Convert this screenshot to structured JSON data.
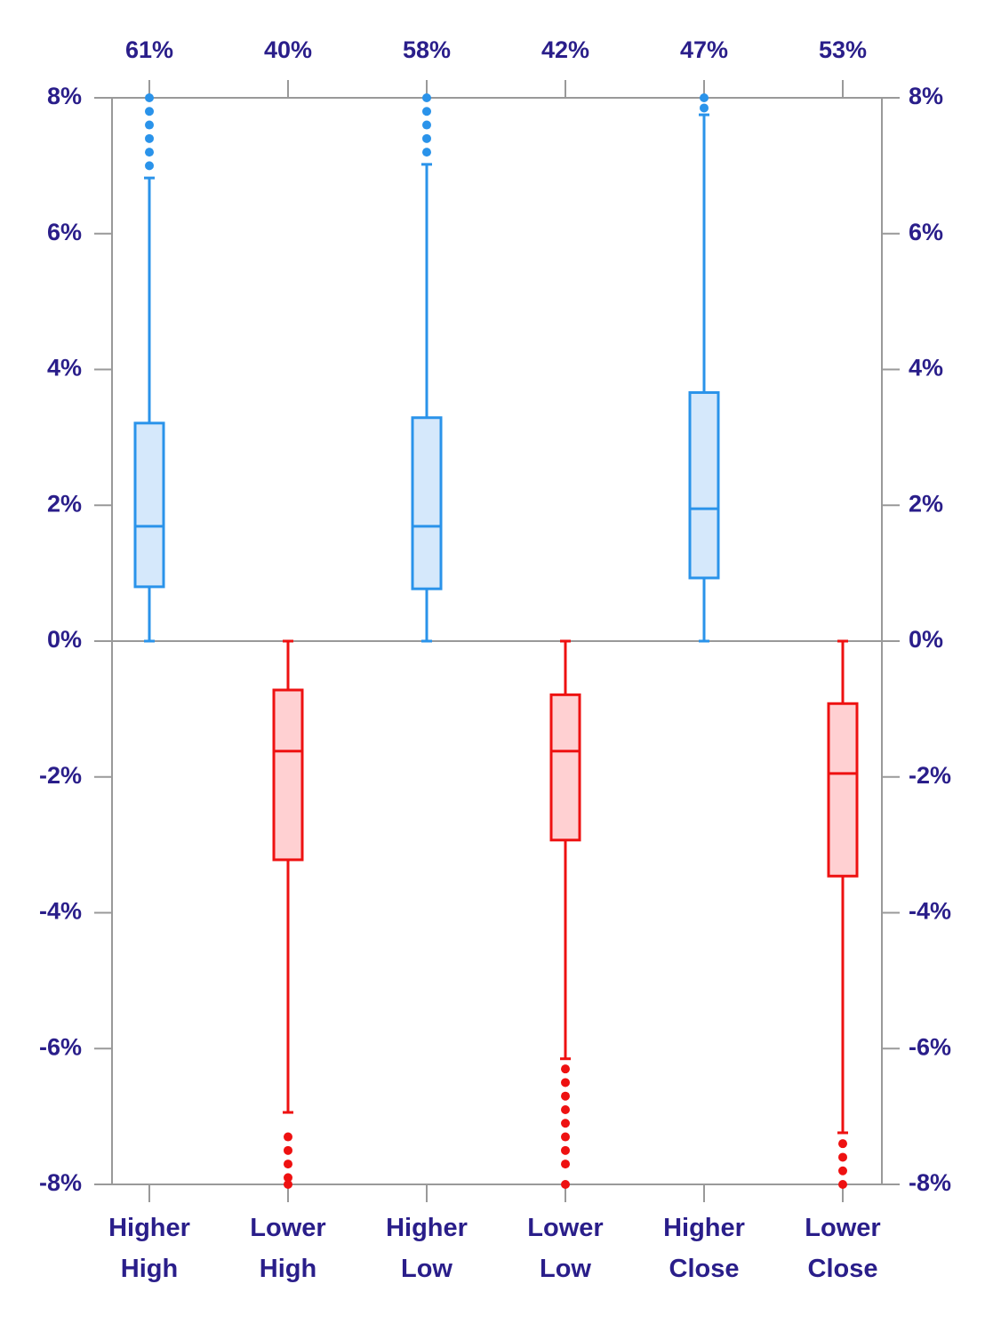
{
  "chart_data": {
    "type": "box",
    "categories": [
      "Higher High",
      "Lower High",
      "Higher Low",
      "Lower Low",
      "Higher Close",
      "Lower Close"
    ],
    "shares": [
      61,
      40,
      58,
      42,
      47,
      53
    ],
    "share_labels": [
      "61%",
      "40%",
      "58%",
      "42%",
      "47%",
      "53%"
    ],
    "colors": [
      "#2a93ea",
      "#ee1111",
      "#2a93ea",
      "#ee1111",
      "#2a93ea",
      "#ee1111"
    ],
    "fills": [
      "#d5e8fb",
      "#ffd0d2",
      "#d5e8fb",
      "#ffd0d2",
      "#d5e8fb",
      "#ffd0d2"
    ],
    "boxes": [
      {
        "whisker_low": 0,
        "q1": 0.8,
        "median": 1.69,
        "q3": 3.21,
        "whisker_high": 6.82,
        "outliers": [
          7.0,
          7.2,
          7.4,
          7.6,
          7.8,
          8.0
        ]
      },
      {
        "whisker_low": -6.94,
        "q1": -3.22,
        "median": -1.62,
        "q3": -0.72,
        "whisker_high": 0,
        "outliers": [
          -7.3,
          -7.5,
          -7.7,
          -7.9,
          -8.0
        ]
      },
      {
        "whisker_low": 0,
        "q1": 0.77,
        "median": 1.69,
        "q3": 3.29,
        "whisker_high": 7.02,
        "outliers": [
          7.2,
          7.4,
          7.6,
          7.8,
          8.0
        ]
      },
      {
        "whisker_low": -6.15,
        "q1": -2.93,
        "median": -1.62,
        "q3": -0.79,
        "whisker_high": 0,
        "outliers": [
          -6.3,
          -6.5,
          -6.7,
          -6.9,
          -7.1,
          -7.3,
          -7.5,
          -7.7,
          -8.0
        ]
      },
      {
        "whisker_low": 0,
        "q1": 0.93,
        "median": 1.95,
        "q3": 3.66,
        "whisker_high": 7.75,
        "outliers": [
          7.85,
          8.0
        ]
      },
      {
        "whisker_low": -7.24,
        "q1": -3.46,
        "median": -1.95,
        "q3": -0.92,
        "whisker_high": 0,
        "outliers": [
          -7.4,
          -7.6,
          -7.8,
          -8.0
        ]
      }
    ],
    "ylim": [
      -8,
      8
    ],
    "yticks": [
      {
        "value": -8,
        "label": "-8%"
      },
      {
        "value": -6,
        "label": "-6%"
      },
      {
        "value": -4,
        "label": "-4%"
      },
      {
        "value": -2,
        "label": "-2%"
      },
      {
        "value": 0,
        "label": "0%"
      },
      {
        "value": 2,
        "label": "2%"
      },
      {
        "value": 4,
        "label": "4%"
      },
      {
        "value": 6,
        "label": "6%"
      },
      {
        "value": 8,
        "label": "8%"
      }
    ]
  }
}
